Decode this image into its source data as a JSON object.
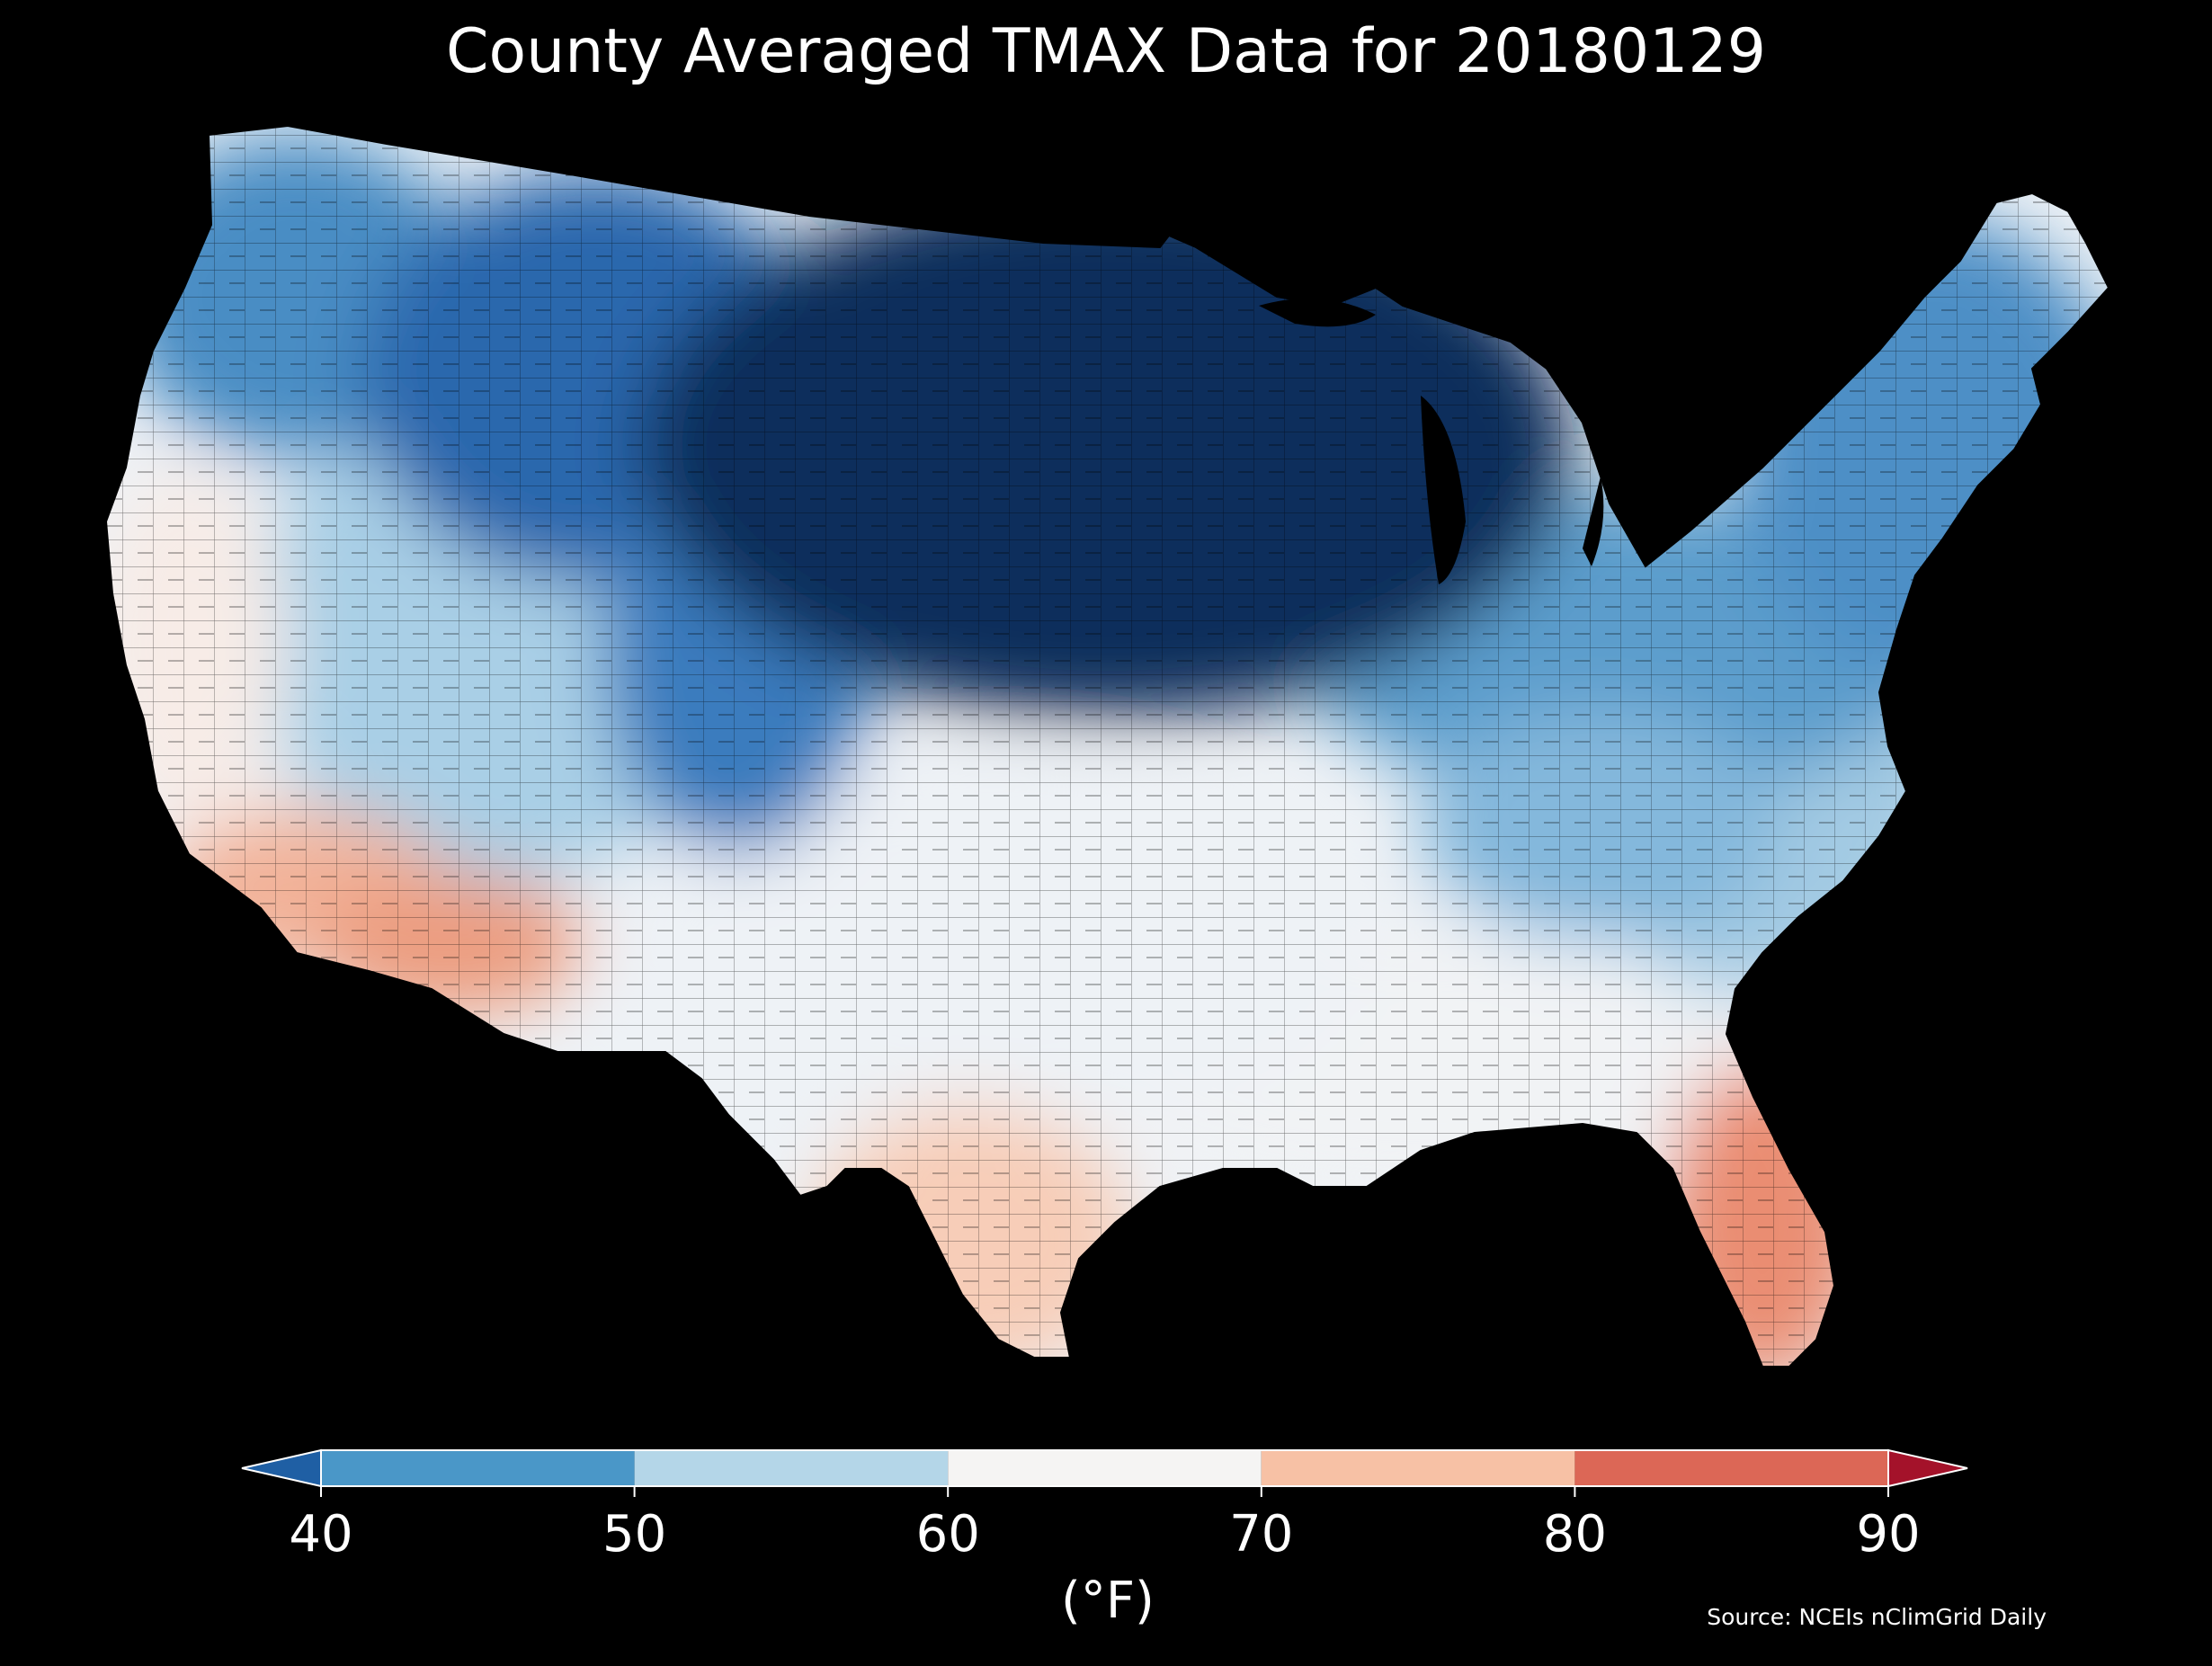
{
  "title": "County Averaged TMAX Data for 20180129",
  "colorbar": {
    "unit_label": "(°F)",
    "ticks": [
      "40",
      "50",
      "60",
      "70",
      "80",
      "90"
    ],
    "bins": [
      {
        "from": null,
        "to": 40,
        "color": "#1f5fa4"
      },
      {
        "from": 40,
        "to": 50,
        "color": "#4a97c8"
      },
      {
        "from": 50,
        "to": 60,
        "color": "#b4d6e8"
      },
      {
        "from": 60,
        "to": 70,
        "color": "#f5f4f3"
      },
      {
        "from": 70,
        "to": 80,
        "color": "#f7c1a5"
      },
      {
        "from": 80,
        "to": 90,
        "color": "#dc6756"
      },
      {
        "from": 90,
        "to": null,
        "color": "#a4122a"
      }
    ],
    "extend": "both"
  },
  "source": "Source: NCEIs nClimGrid Daily",
  "colors": {
    "background": "#000000",
    "very_cold": "#0d2f5c",
    "cold": "#2c6cb0",
    "cool": "#6fb0d8",
    "mild": "#d6e7f2",
    "neutral": "#f5f4f3",
    "warm": "#f6c5ad",
    "hot": "#e6826a"
  },
  "regions": [
    {
      "id": "northern-plains-midwest",
      "approx_value_f": 20,
      "color": "#0d2f5c"
    },
    {
      "id": "northern-rockies",
      "approx_value_f": 38,
      "color": "#2a67ad"
    },
    {
      "id": "pacific-northwest",
      "approx_value_f": 45,
      "color": "#4a8dc4"
    },
    {
      "id": "great-basin",
      "approx_value_f": 55,
      "color": "#a9cfe6"
    },
    {
      "id": "central-plains",
      "approx_value_f": 48,
      "color": "#3a7cbe"
    },
    {
      "id": "great-lakes-ohio-valley",
      "approx_value_f": 45,
      "color": "#5b9dcc"
    },
    {
      "id": "appalachians",
      "approx_value_f": 48,
      "color": "#84b8dc"
    },
    {
      "id": "northeast",
      "approx_value_f": 42,
      "color": "#4e8fc6"
    },
    {
      "id": "mid-atlantic",
      "approx_value_f": 52,
      "color": "#a3cae3"
    },
    {
      "id": "southern-plains",
      "approx_value_f": 62,
      "color": "#eef2f6"
    },
    {
      "id": "southeast",
      "approx_value_f": 64,
      "color": "#f1f3f5"
    },
    {
      "id": "california-coast",
      "approx_value_f": 68,
      "color": "#f7ece7"
    },
    {
      "id": "southern-california",
      "approx_value_f": 75,
      "color": "#f2b39a"
    },
    {
      "id": "southwest-desert",
      "approx_value_f": 78,
      "color": "#ec9d80"
    },
    {
      "id": "south-texas",
      "approx_value_f": 74,
      "color": "#f7cdb8"
    },
    {
      "id": "florida",
      "approx_value_f": 80,
      "color": "#ea8d72"
    }
  ]
}
